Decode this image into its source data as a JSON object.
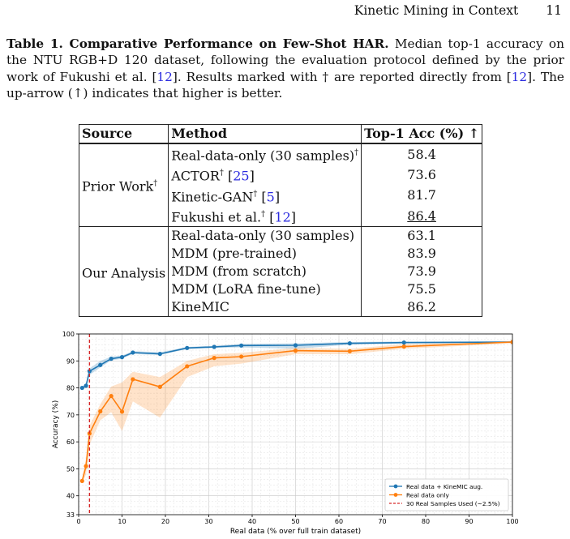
{
  "header": {
    "title": "Kinetic Mining in Context",
    "page_number": "11"
  },
  "caption": {
    "label": "Table 1. Comparative Performance on Few-Shot HAR.",
    "text_1": " Median top-1 accuracy on the NTU RGB+D 120 dataset, following the evaluation protocol defined by the prior work of Fukushi et al. [",
    "ref_a": "12",
    "text_2": "]. Results marked with † are reported directly from [",
    "ref_b": "12",
    "text_3": "]. The up-arrow (↑) indicates that higher is better."
  },
  "table": {
    "headers": {
      "source": "Source",
      "method": "Method",
      "acc": "Top-1 Acc (%) ↑"
    },
    "groups": [
      {
        "source": "Prior Work",
        "source_mark": "†",
        "rows": [
          {
            "method": "Real-data-only (30 samples)",
            "mark": "†",
            "ref": "",
            "acc": "58.4",
            "underline": false
          },
          {
            "method": "ACTOR",
            "mark": "†",
            "ref": "25",
            "acc": "73.6",
            "underline": false
          },
          {
            "method": "Kinetic-GAN",
            "mark": "†",
            "ref": "5",
            "acc": "81.7",
            "underline": false
          },
          {
            "method": "Fukushi et al.",
            "mark": "†",
            "ref": "12",
            "acc": "86.4",
            "underline": true
          }
        ]
      },
      {
        "source": "Our Analysis",
        "source_mark": "",
        "rows": [
          {
            "method": "Real-data-only (30 samples)",
            "mark": "",
            "ref": "",
            "acc": "63.1",
            "underline": false
          },
          {
            "method": "MDM (pre-trained)",
            "mark": "",
            "ref": "",
            "acc": "83.9",
            "underline": false
          },
          {
            "method": "MDM (from scratch)",
            "mark": "",
            "ref": "",
            "acc": "73.9",
            "underline": false
          },
          {
            "method": "MDM (LoRA fine-tune)",
            "mark": "",
            "ref": "",
            "acc": "75.5",
            "underline": false
          },
          {
            "method": "KineMIC",
            "mark": "",
            "ref": "",
            "acc": "86.2",
            "underline": false
          }
        ]
      }
    ]
  },
  "colors": {
    "blue": "#1f77b4",
    "orange": "#ff7f0e",
    "red": "#d62728"
  },
  "chart_data": {
    "type": "line",
    "xlabel": "Real data (% over full train dataset)",
    "ylabel": "Accuracy (%)",
    "xlim": [
      0,
      100
    ],
    "ylim": [
      33,
      100
    ],
    "xticks": [
      0,
      10,
      20,
      30,
      40,
      50,
      60,
      70,
      80,
      90,
      100
    ],
    "yticks": [
      33,
      40,
      50,
      60,
      70,
      80,
      90,
      100
    ],
    "grid": true,
    "legend_position": "bottom-right",
    "vline": {
      "x": 2.5,
      "label": "30 Real Samples Used (~2.5%)"
    },
    "series": [
      {
        "name": "Real data + KineMIC aug.",
        "color": "#1f77b4",
        "x": [
          0.8,
          1.7,
          2.5,
          5,
          7.5,
          10,
          12.5,
          18.75,
          25,
          31.25,
          37.5,
          50,
          62.5,
          75,
          100
        ],
        "y": [
          80.0,
          80.8,
          86.2,
          88.5,
          90.8,
          91.4,
          93.1,
          92.6,
          94.8,
          95.2,
          95.7,
          95.8,
          96.5,
          96.8,
          97.0
        ],
        "lower": [
          79.6,
          80.2,
          84.8,
          87.6,
          90.2,
          90.8,
          92.6,
          92.2,
          94.4,
          94.8,
          95.0,
          94.5,
          96.0,
          96.5,
          96.8
        ],
        "upper": [
          80.4,
          81.4,
          87.2,
          90.0,
          91.6,
          92.0,
          93.6,
          93.2,
          95.2,
          95.6,
          96.3,
          96.5,
          97.0,
          97.2,
          97.2
        ]
      },
      {
        "name": "Real data only",
        "color": "#ff7f0e",
        "x": [
          0.8,
          1.7,
          2.5,
          5,
          7.5,
          10,
          12.5,
          18.75,
          25,
          31.25,
          37.5,
          50,
          62.5,
          75,
          100
        ],
        "y": [
          45.5,
          51.0,
          63.1,
          71.3,
          77.0,
          71.2,
          83.2,
          80.4,
          88.0,
          91.1,
          91.6,
          93.8,
          93.6,
          95.3,
          97.0
        ],
        "lower": [
          44.5,
          48.0,
          59.0,
          68.0,
          71.0,
          64.0,
          75.0,
          69.0,
          84.0,
          88.0,
          89.0,
          92.5,
          92.5,
          94.5,
          96.5
        ],
        "upper": [
          46.5,
          54.0,
          66.0,
          74.0,
          80.5,
          82.0,
          86.0,
          84.0,
          90.0,
          92.5,
          93.0,
          94.8,
          94.5,
          96.2,
          97.3
        ]
      }
    ]
  }
}
